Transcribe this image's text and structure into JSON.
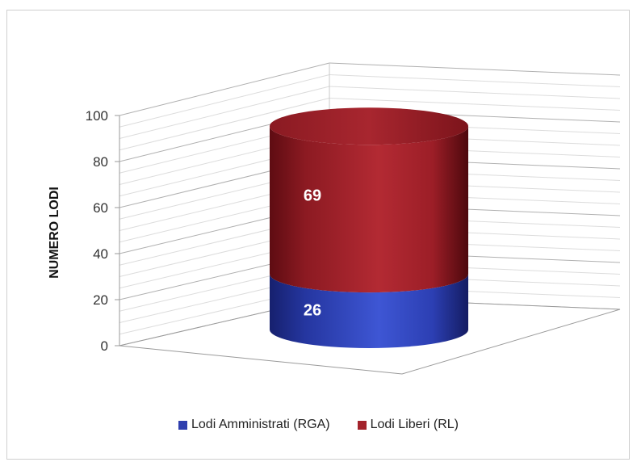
{
  "chart_data": {
    "type": "bar",
    "stacked": true,
    "style": "3d-cylinder",
    "categories": [
      ""
    ],
    "series": [
      {
        "name": "Lodi Amministrati (RGA)",
        "values": [
          26
        ],
        "color": "#2f3fae"
      },
      {
        "name": "Lodi Liberi (RL)",
        "values": [
          69
        ],
        "color": "#a3232b"
      }
    ],
    "ylabel": "NUMERO LODI",
    "xlabel": "",
    "ylim": [
      0,
      100
    ],
    "yticks": [
      0,
      20,
      40,
      60,
      80,
      100
    ],
    "grid": true,
    "legend_position": "bottom"
  },
  "legend": {
    "items": [
      {
        "label": "Lodi Amministrati (RGA)",
        "color": "#2f3fae"
      },
      {
        "label": "Lodi Liberi (RL)",
        "color": "#a3232b"
      }
    ]
  }
}
